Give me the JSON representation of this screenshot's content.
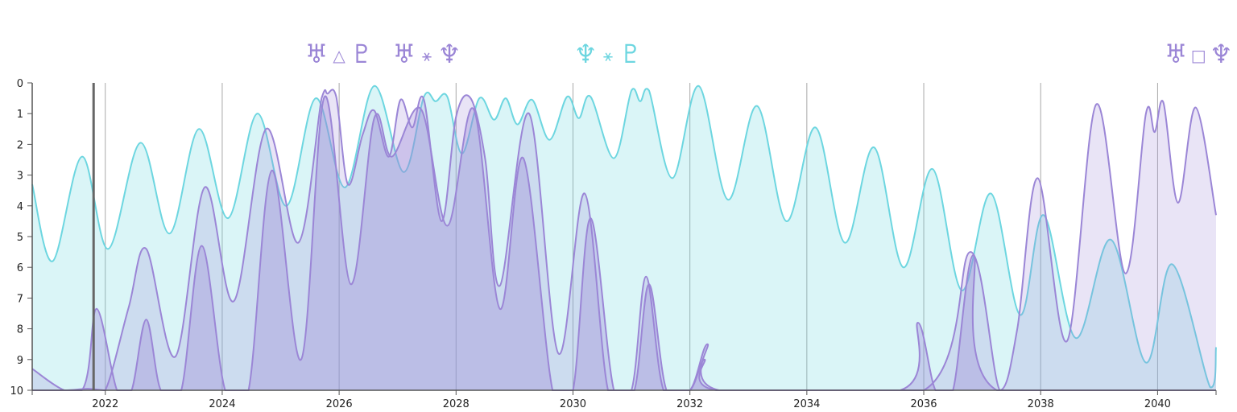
{
  "colors": {
    "cyan": "#6dd6e0",
    "cyan_fill": "#6dd6e0",
    "purple": "#9b86d6",
    "purple_fill": "#b7a7e0",
    "axis": "#555555",
    "grid": "#a8a8a8",
    "current_marker": "#666666"
  },
  "aspects": [
    {
      "id": "uranus-trine-pluto",
      "color": "#9b86d6",
      "a": "♅",
      "sym": "△",
      "b": "♇",
      "x": 2026.0
    },
    {
      "id": "uranus-sextile-neptune",
      "color": "#9b86d6",
      "a": "♅",
      "sym": "⚹",
      "b": "♆",
      "x": 2027.5
    },
    {
      "id": "neptune-sextile-pluto",
      "color": "#6dd6e0",
      "a": "♆",
      "sym": "⚹",
      "b": "♇",
      "x": 2030.6
    },
    {
      "id": "uranus-square-neptune",
      "color": "#9b86d6",
      "a": "♅",
      "sym": "□",
      "b": "♆",
      "x": 2040.7
    }
  ],
  "chart_data": {
    "type": "area",
    "xlim": [
      2020.75,
      2041.0
    ],
    "ylim": [
      10,
      0
    ],
    "current_date": 2021.8,
    "x_ticks": [
      2022,
      2024,
      2026,
      2028,
      2030,
      2032,
      2034,
      2036,
      2038,
      2040
    ],
    "x_tick_labels": [
      "2022",
      "2024",
      "2026",
      "2028",
      "2030",
      "2032",
      "2034",
      "2036",
      "2038",
      "2040"
    ],
    "y_ticks": [
      0,
      1,
      2,
      3,
      4,
      5,
      6,
      7,
      8,
      9,
      10
    ],
    "y_tick_labels": [
      "0",
      "1",
      "2",
      "3",
      "4",
      "5",
      "6",
      "7",
      "8",
      "9",
      "10"
    ],
    "series": [
      {
        "color": "#6dd6e0",
        "fill_opacity": 0.25,
        "points": [
          [
            2020.75,
            3.3
          ],
          [
            2021.1,
            5.8
          ],
          [
            2021.6,
            2.4
          ],
          [
            2022.05,
            5.4
          ],
          [
            2022.6,
            1.95
          ],
          [
            2023.1,
            4.9
          ],
          [
            2023.6,
            1.5
          ],
          [
            2024.1,
            4.4
          ],
          [
            2024.6,
            1.0
          ],
          [
            2025.1,
            4.0
          ],
          [
            2025.6,
            0.5
          ],
          [
            2026.1,
            3.4
          ],
          [
            2026.6,
            0.1
          ],
          [
            2027.1,
            2.9
          ],
          [
            2027.45,
            0.45
          ],
          [
            2027.65,
            0.6
          ],
          [
            2027.85,
            0.45
          ],
          [
            2028.1,
            2.3
          ],
          [
            2028.4,
            0.5
          ],
          [
            2028.65,
            1.2
          ],
          [
            2028.85,
            0.5
          ],
          [
            2029.05,
            1.35
          ],
          [
            2029.3,
            0.55
          ],
          [
            2029.6,
            1.85
          ],
          [
            2029.9,
            0.45
          ],
          [
            2030.1,
            1.15
          ],
          [
            2030.3,
            0.45
          ],
          [
            2030.7,
            2.45
          ],
          [
            2031.0,
            0.25
          ],
          [
            2031.15,
            0.6
          ],
          [
            2031.3,
            0.25
          ],
          [
            2031.7,
            3.1
          ],
          [
            2032.15,
            0.1
          ],
          [
            2032.65,
            3.8
          ],
          [
            2033.15,
            0.75
          ],
          [
            2033.65,
            4.5
          ],
          [
            2034.15,
            1.45
          ],
          [
            2034.65,
            5.2
          ],
          [
            2035.15,
            2.1
          ],
          [
            2035.65,
            6.0
          ],
          [
            2036.15,
            2.8
          ],
          [
            2036.65,
            6.75
          ],
          [
            2037.15,
            3.6
          ],
          [
            2037.65,
            7.55
          ],
          [
            2038.05,
            4.3
          ],
          [
            2038.6,
            8.3
          ],
          [
            2039.2,
            5.1
          ],
          [
            2039.8,
            9.1
          ],
          [
            2040.25,
            5.9
          ],
          [
            2040.9,
            9.9
          ],
          [
            2041.0,
            8.6
          ]
        ]
      },
      {
        "color": "#9b86d6",
        "fill_opacity": 0.22,
        "points": [
          [
            2020.75,
            9.3
          ],
          [
            2021.3,
            10.0
          ],
          [
            2021.7,
            9.95
          ],
          [
            2022.0,
            10.0
          ],
          [
            2022.4,
            7.3
          ],
          [
            2022.7,
            5.4
          ],
          [
            2023.2,
            8.9
          ],
          [
            2023.7,
            3.4
          ],
          [
            2024.2,
            7.1
          ],
          [
            2024.75,
            1.5
          ],
          [
            2025.3,
            5.2
          ],
          [
            2025.7,
            0.5
          ],
          [
            2025.8,
            0.35
          ],
          [
            2025.95,
            0.45
          ],
          [
            2026.15,
            3.3
          ],
          [
            2026.4,
            1.7
          ],
          [
            2026.6,
            0.9
          ],
          [
            2026.85,
            2.4
          ],
          [
            2027.05,
            0.55
          ],
          [
            2027.25,
            1.45
          ],
          [
            2027.45,
            0.55
          ],
          [
            2027.75,
            4.5
          ],
          [
            2028.0,
            1.1
          ],
          [
            2028.25,
            0.5
          ],
          [
            2028.5,
            2.5
          ],
          [
            2028.75,
            6.6
          ],
          [
            2029.25,
            1.0
          ],
          [
            2029.75,
            8.8
          ],
          [
            2030.2,
            3.6
          ],
          [
            2030.6,
            10.0
          ],
          [
            2031.0,
            10.0
          ],
          [
            2031.25,
            6.3
          ],
          [
            2031.55,
            10.0
          ],
          [
            2032.0,
            10.0
          ],
          [
            2032.3,
            8.5
          ],
          [
            2032.5,
            10.0
          ],
          [
            2036.0,
            10.0
          ],
          [
            2036.8,
            5.5
          ],
          [
            2037.3,
            10.0
          ],
          [
            2037.6,
            8.0
          ],
          [
            2037.95,
            3.1
          ],
          [
            2038.45,
            8.4
          ],
          [
            2038.95,
            0.7
          ],
          [
            2039.45,
            6.2
          ],
          [
            2039.8,
            1.0
          ],
          [
            2039.95,
            1.6
          ],
          [
            2040.1,
            0.65
          ],
          [
            2040.35,
            3.9
          ],
          [
            2040.65,
            0.8
          ],
          [
            2041.0,
            4.3
          ]
        ]
      },
      {
        "color": "#9b86d6",
        "fill_opacity": 0.35,
        "points": [
          [
            2020.75,
            10.0
          ],
          [
            2021.6,
            10.0
          ],
          [
            2021.85,
            7.35
          ],
          [
            2022.2,
            10.0
          ],
          [
            2022.45,
            10.0
          ],
          [
            2022.7,
            7.7
          ],
          [
            2022.95,
            10.0
          ],
          [
            2023.3,
            10.0
          ],
          [
            2023.65,
            5.3
          ],
          [
            2024.05,
            10.0
          ],
          [
            2024.45,
            10.0
          ],
          [
            2024.85,
            2.85
          ],
          [
            2025.35,
            9.0
          ],
          [
            2025.75,
            0.45
          ],
          [
            2026.2,
            6.55
          ],
          [
            2026.6,
            1.15
          ],
          [
            2026.9,
            2.4
          ],
          [
            2027.4,
            0.85
          ],
          [
            2027.85,
            4.65
          ],
          [
            2028.3,
            0.85
          ],
          [
            2028.75,
            7.35
          ],
          [
            2029.15,
            2.45
          ],
          [
            2029.65,
            10.0
          ],
          [
            2030.0,
            10.0
          ],
          [
            2030.3,
            4.4
          ],
          [
            2030.7,
            10.0
          ],
          [
            2031.05,
            10.0
          ],
          [
            2031.3,
            6.55
          ],
          [
            2031.6,
            10.0
          ],
          [
            2032.0,
            10.0
          ],
          [
            2032.25,
            9.0
          ],
          [
            2032.45,
            10.0
          ],
          [
            2035.6,
            10.0
          ],
          [
            2035.9,
            7.8
          ],
          [
            2036.2,
            10.0
          ],
          [
            2036.5,
            10.0
          ],
          [
            2036.85,
            5.6
          ],
          [
            2037.25,
            10.0
          ],
          [
            2041.0,
            10.0
          ]
        ]
      }
    ]
  }
}
